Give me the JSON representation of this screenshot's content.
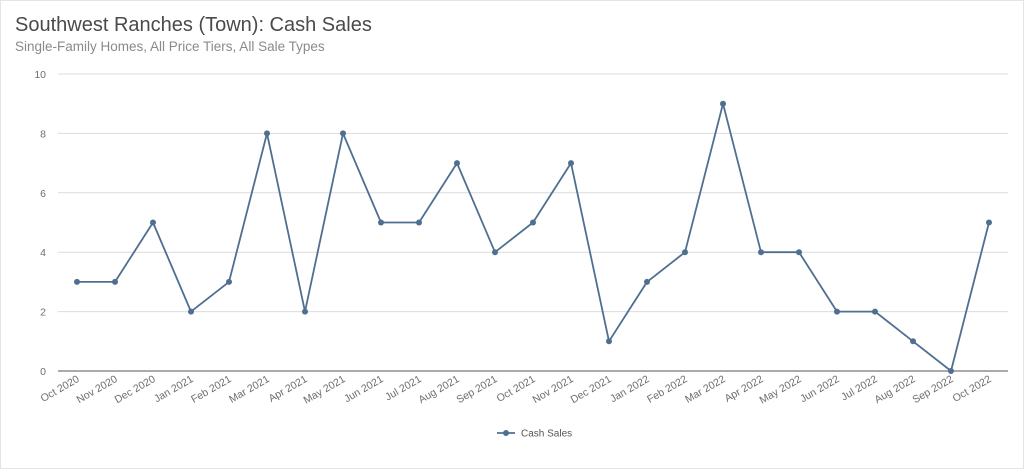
{
  "chart_data": {
    "type": "line",
    "title": "Southwest Ranches (Town): Cash Sales",
    "subtitle": "Single-Family Homes, All Price Tiers, All Sale Types",
    "xlabel": "",
    "ylabel": "",
    "ylim": [
      0,
      10
    ],
    "yticks": [
      "0",
      "2",
      "4",
      "6",
      "8",
      "10"
    ],
    "grid": true,
    "legend_position": "bottom-center",
    "categories": [
      "Oct 2020",
      "Nov 2020",
      "Dec 2020",
      "Jan 2021",
      "Feb 2021",
      "Mar 2021",
      "Apr 2021",
      "May 2021",
      "Jun 2021",
      "Jul 2021",
      "Aug 2021",
      "Sep 2021",
      "Oct 2021",
      "Nov 2021",
      "Dec 2021",
      "Jan 2022",
      "Feb 2022",
      "Mar 2022",
      "Apr 2022",
      "May 2022",
      "Jun 2022",
      "Jul 2022",
      "Aug 2022",
      "Sep 2022",
      "Oct 2022"
    ],
    "series": [
      {
        "name": "Cash Sales",
        "color": "#4f6f91",
        "values": [
          3,
          3,
          5,
          2,
          3,
          8,
          2,
          8,
          5,
          5,
          7,
          4,
          5,
          7,
          1,
          3,
          4,
          9,
          4,
          4,
          2,
          2,
          1,
          0,
          5
        ]
      }
    ]
  }
}
